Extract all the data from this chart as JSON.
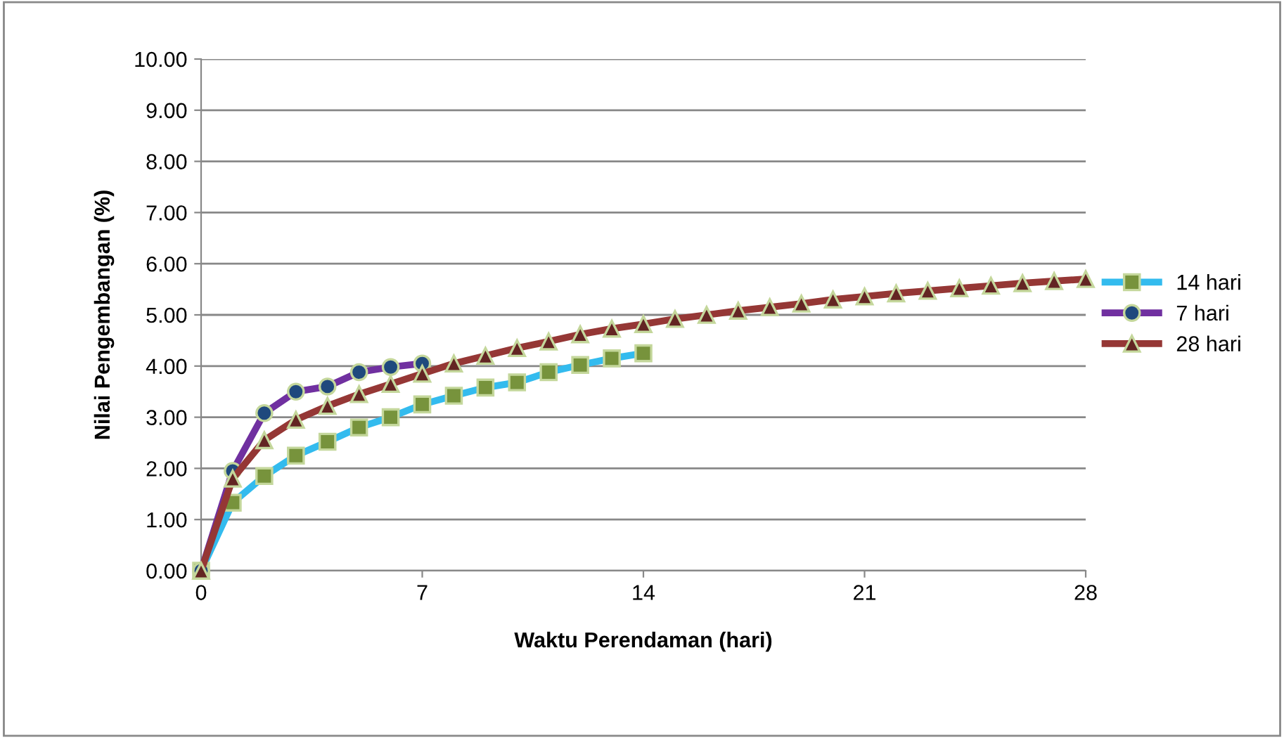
{
  "chart_data": {
    "type": "line",
    "xlabel": "Waktu Perendaman (hari)",
    "ylabel": "Nilai Pengembangan (%)",
    "xlim": [
      0,
      28
    ],
    "xticks": [
      0,
      7,
      14,
      21,
      28
    ],
    "ylim": [
      0,
      10
    ],
    "yticks": [
      {
        "value": 0,
        "label": "0.00"
      },
      {
        "value": 1,
        "label": "1.00"
      },
      {
        "value": 2,
        "label": "2.00"
      },
      {
        "value": 3,
        "label": "3.00"
      },
      {
        "value": 4,
        "label": "4.00"
      },
      {
        "value": 5,
        "label": "5.00"
      },
      {
        "value": 6,
        "label": "6.00"
      },
      {
        "value": 7,
        "label": "7.00"
      },
      {
        "value": 8,
        "label": "8.00"
      },
      {
        "value": 9,
        "label": "9.00"
      },
      {
        "value": 10,
        "label": "10.00"
      }
    ],
    "grid": "y",
    "legend": "right",
    "series": [
      {
        "name": "14 hari",
        "color": "#33bbee",
        "marker": "square",
        "x": [
          0,
          1,
          2,
          3,
          4,
          5,
          6,
          7,
          8,
          9,
          10,
          11,
          12,
          13,
          14
        ],
        "values": [
          0,
          1.33,
          1.85,
          2.25,
          2.52,
          2.8,
          3.0,
          3.25,
          3.42,
          3.58,
          3.68,
          3.88,
          4.02,
          4.15,
          4.25
        ]
      },
      {
        "name": "7 hari",
        "color": "#7030a0",
        "marker": "circle",
        "x": [
          0,
          1,
          2,
          3,
          4,
          5,
          6,
          7
        ],
        "values": [
          0,
          1.95,
          3.08,
          3.5,
          3.6,
          3.88,
          3.98,
          4.05
        ]
      },
      {
        "name": "28 hari",
        "color": "#953735",
        "marker": "triangle",
        "x": [
          0,
          1,
          2,
          3,
          4,
          5,
          6,
          7,
          8,
          9,
          10,
          11,
          12,
          13,
          14,
          15,
          16,
          17,
          18,
          19,
          20,
          21,
          22,
          23,
          24,
          25,
          26,
          27,
          28
        ],
        "values": [
          0,
          1.8,
          2.55,
          2.95,
          3.22,
          3.45,
          3.65,
          3.85,
          4.05,
          4.2,
          4.35,
          4.48,
          4.62,
          4.73,
          4.82,
          4.92,
          5.0,
          5.08,
          5.15,
          5.22,
          5.3,
          5.36,
          5.42,
          5.47,
          5.52,
          5.57,
          5.62,
          5.66,
          5.7
        ]
      }
    ]
  }
}
